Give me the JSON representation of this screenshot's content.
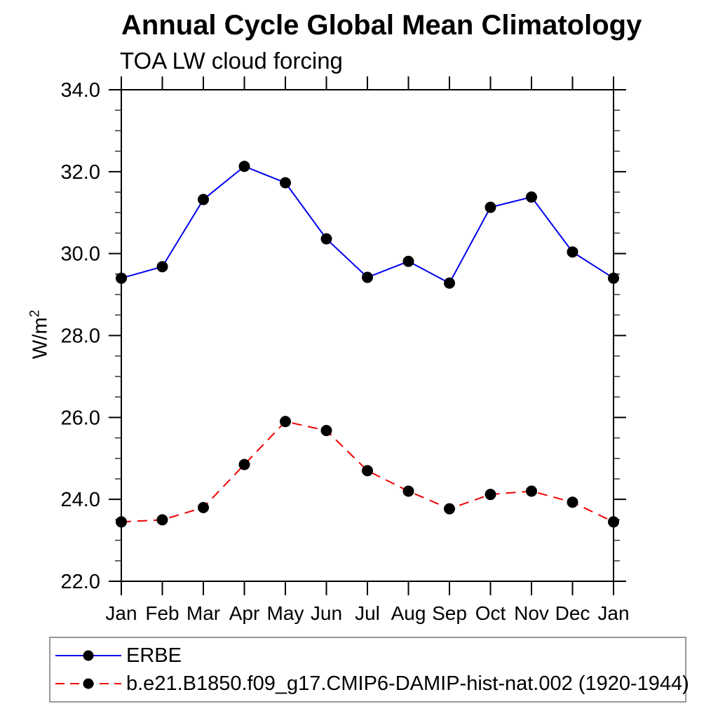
{
  "chart_data": {
    "type": "line",
    "title": "Annual Cycle Global Mean Climatology",
    "subtitle": "TOA LW cloud forcing",
    "ylabel_base": "W/m",
    "ylabel_sup": "2",
    "categories": [
      "Jan",
      "Feb",
      "Mar",
      "Apr",
      "May",
      "Jun",
      "Jul",
      "Aug",
      "Sep",
      "Oct",
      "Nov",
      "Dec",
      "Jan"
    ],
    "ylim": [
      22.0,
      34.0
    ],
    "ytick_step": 2.0,
    "ytick_minor_step": 0.5,
    "ytick_labels": [
      "22.0",
      "24.0",
      "26.0",
      "28.0",
      "30.0",
      "32.0",
      "34.0"
    ],
    "grid": false,
    "legend_position": "bottom-left-box",
    "axis_color": "#000000",
    "marker_color": "#000000",
    "series": [
      {
        "name": "ERBE",
        "color": "#0000ee",
        "style": "solid",
        "marker": "circle",
        "values": [
          29.4,
          29.68,
          31.32,
          32.13,
          31.73,
          30.36,
          29.42,
          29.81,
          29.28,
          31.13,
          31.38,
          30.04,
          29.4
        ]
      },
      {
        "name": "b.e21.B1850.f09_g17.CMIP6-DAMIP-hist-nat.002 (1920-1944)",
        "color": "#ee0000",
        "style": "dashed",
        "marker": "circle",
        "values": [
          23.45,
          23.5,
          23.8,
          24.85,
          25.9,
          25.68,
          24.7,
          24.2,
          23.77,
          24.12,
          24.2,
          23.93,
          23.45
        ]
      }
    ]
  }
}
